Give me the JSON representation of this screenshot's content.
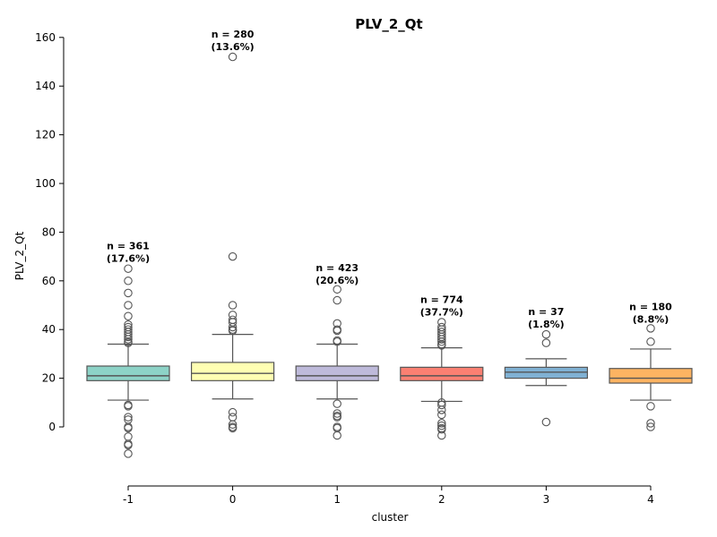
{
  "chart_data": {
    "type": "box",
    "title": "PLV_2_Qt",
    "xlabel": "cluster",
    "ylabel": "PLV_2_Qt",
    "ylim": [
      -24,
      161
    ],
    "yticks": [
      0,
      20,
      40,
      60,
      80,
      100,
      120,
      140,
      160
    ],
    "categories": [
      "-1",
      "0",
      "1",
      "2",
      "3",
      "4"
    ],
    "grid": false,
    "boxes": [
      {
        "category": "-1",
        "color": "#8dd3c7",
        "q1": 19,
        "median": 21,
        "q3": 25,
        "whisker_low": 11,
        "whisker_high": 34,
        "outliers": [
          65,
          60,
          55,
          50,
          45.5,
          42,
          41,
          40,
          39,
          38,
          37,
          36,
          35,
          34.5,
          9,
          8.5,
          4,
          3,
          0,
          -0.5,
          -4,
          -7,
          -7.5,
          -11
        ],
        "count_label": "n = 361",
        "pct_label": "(17.6%)",
        "label_y": 73
      },
      {
        "category": "0",
        "color": "#ffffb3",
        "q1": 19,
        "median": 22,
        "q3": 26.5,
        "whisker_low": 11.5,
        "whisker_high": 38,
        "outliers": [
          152,
          70,
          50,
          46,
          44,
          43,
          41,
          40,
          39.5,
          6,
          4,
          1,
          0,
          -0.5
        ],
        "count_label": "n = 280",
        "pct_label": "(13.6%)",
        "label_y": 160
      },
      {
        "category": "1",
        "color": "#bebada",
        "q1": 19,
        "median": 21,
        "q3": 25,
        "whisker_low": 11.5,
        "whisker_high": 34,
        "outliers": [
          56.5,
          52,
          42.5,
          40,
          39.5,
          35.5,
          35,
          9.5,
          5.5,
          4.5,
          4,
          0,
          -0.5,
          -3.5
        ],
        "count_label": "n = 423",
        "pct_label": "(20.6%)",
        "label_y": 64
      },
      {
        "category": "2",
        "color": "#fb8072",
        "q1": 19,
        "median": 21,
        "q3": 24.5,
        "whisker_low": 10.5,
        "whisker_high": 32.5,
        "outliers": [
          43,
          41,
          40,
          39,
          38,
          37,
          36,
          35,
          34,
          33.5,
          10,
          9,
          7,
          5,
          1.5,
          0.5,
          -0.5,
          -1,
          -3.5
        ],
        "count_label": "n = 774",
        "pct_label": "(37.7%)",
        "label_y": 51
      },
      {
        "category": "3",
        "color": "#80b1d3",
        "q1": 20,
        "median": 22.5,
        "q3": 24.5,
        "whisker_low": 17,
        "whisker_high": 28,
        "outliers": [
          38,
          34.5,
          2
        ],
        "count_label": "n = 37",
        "pct_label": "(1.8%)",
        "label_y": 46
      },
      {
        "category": "4",
        "color": "#fdb462",
        "q1": 18,
        "median": 20,
        "q3": 24,
        "whisker_low": 11,
        "whisker_high": 32,
        "outliers": [
          40.5,
          35,
          8.5,
          1.5,
          0
        ],
        "count_label": "n = 180",
        "pct_label": "(8.8%)",
        "label_y": 48
      }
    ]
  }
}
